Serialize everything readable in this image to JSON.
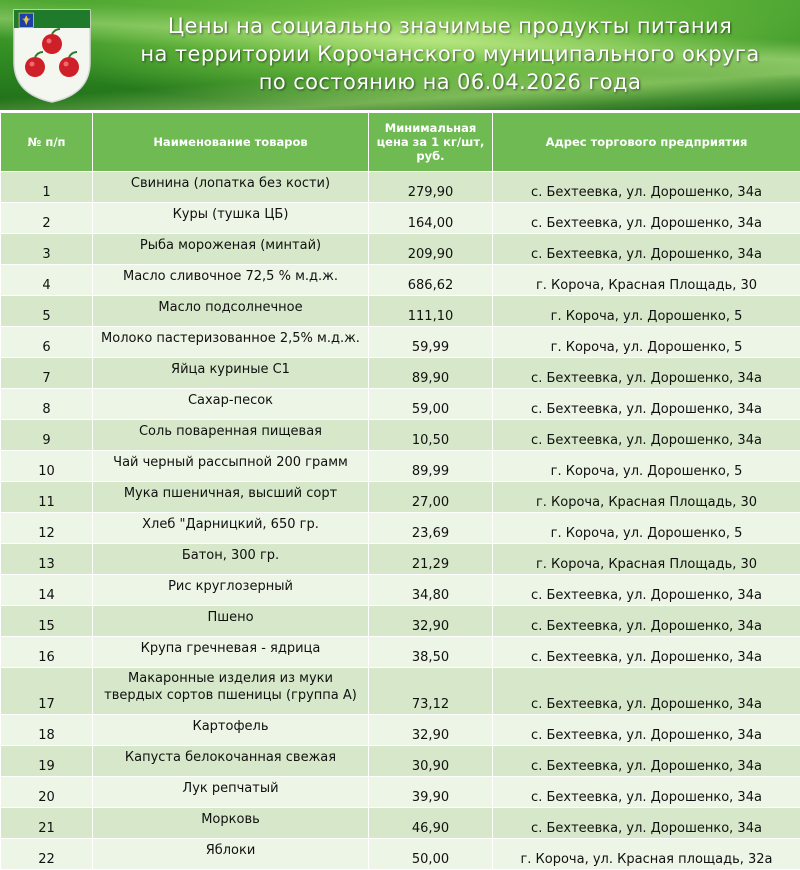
{
  "header": {
    "title_lines": [
      "Цены на социально значимые продукты питания",
      "на территории Корочанского муниципального округа",
      "по состоянию на 06.04.2026 года"
    ]
  },
  "colors": {
    "header_bg": "#6fba52",
    "row_odd": "#d6e8c9",
    "row_even": "#edf5e6",
    "banner_green": "#3a9528"
  },
  "table": {
    "columns": [
      "№ п/п",
      "Наименование товаров",
      "Минимальная цена за 1 кг/шт, руб.",
      "Адрес торгового  предприятия"
    ],
    "rows": [
      {
        "num": "1",
        "name": "Свинина (лопатка без кости)",
        "price": "279,90",
        "address": "с. Бехтеевка, ул. Дорошенко, 34а"
      },
      {
        "num": "2",
        "name": "Куры (тушка ЦБ)",
        "price": "164,00",
        "address": "с. Бехтеевка, ул. Дорошенко, 34а"
      },
      {
        "num": "3",
        "name": "Рыба мороженая  (минтай)",
        "price": "209,90",
        "address": "с. Бехтеевка, ул. Дорошенко, 34а"
      },
      {
        "num": "4",
        "name": "Масло сливочное 72,5 % м.д.ж.",
        "price": "686,62",
        "address": "г. Короча, Красная Площадь, 30"
      },
      {
        "num": "5",
        "name": "Масло подсолнечное",
        "price": "111,10",
        "address": "г. Короча, ул. Дорошенко, 5"
      },
      {
        "num": "6",
        "name": "Молоко пастеризованное  2,5% м.д.ж.",
        "price": "59,99",
        "address": "г. Короча, ул. Дорошенко, 5"
      },
      {
        "num": "7",
        "name": "Яйца куриные С1",
        "price": "89,90",
        "address": "с. Бехтеевка, ул. Дорошенко, 34а"
      },
      {
        "num": "8",
        "name": "Сахар-песок",
        "price": "59,00",
        "address": "с. Бехтеевка, ул. Дорошенко, 34а"
      },
      {
        "num": "9",
        "name": "Соль поваренная пищевая",
        "price": "10,50",
        "address": "с. Бехтеевка, ул. Дорошенко, 34а"
      },
      {
        "num": "10",
        "name": "Чай черный рассыпной 200 грамм",
        "price": "89,99",
        "address": "г. Короча, ул. Дорошенко, 5"
      },
      {
        "num": "11",
        "name": "Мука пшеничная,  высший сорт",
        "price": "27,00",
        "address": "г. Короча, Красная Площадь, 30"
      },
      {
        "num": "12",
        "name": "Хлеб \"Дарницкий, 650 гр.",
        "price": "23,69",
        "address": "г. Короча, ул. Дорошенко, 5"
      },
      {
        "num": "13",
        "name": "Батон, 300 гр.",
        "price": "21,29",
        "address": "г. Короча, Красная Площадь, 30"
      },
      {
        "num": "14",
        "name": "Рис круглозерный",
        "price": "34,80",
        "address": "с. Бехтеевка, ул. Дорошенко, 34а"
      },
      {
        "num": "15",
        "name": "Пшено",
        "price": "32,90",
        "address": "с. Бехтеевка, ул. Дорошенко, 34а"
      },
      {
        "num": "16",
        "name": "Крупа гречневая  - ядрица",
        "price": "38,50",
        "address": "с. Бехтеевка, ул. Дорошенко, 34а"
      },
      {
        "num": "17",
        "name": "Макаронные изделия из муки твердых сортов пшеницы  (группа А)",
        "price": "73,12",
        "address": "с. Бехтеевка, ул. Дорошенко, 34а",
        "tall": true
      },
      {
        "num": "18",
        "name": "Картофель",
        "price": "32,90",
        "address": "с. Бехтеевка, ул. Дорошенко, 34а"
      },
      {
        "num": "19",
        "name": "Капуста белокочанная свежая",
        "price": "30,90",
        "address": "с. Бехтеевка, ул. Дорошенко, 34а"
      },
      {
        "num": "20",
        "name": "Лук репчатый",
        "price": "39,90",
        "address": "с. Бехтеевка, ул. Дорошенко, 34а"
      },
      {
        "num": "21",
        "name": "Морковь",
        "price": "46,90",
        "address": "с. Бехтеевка, ул. Дорошенко, 34а"
      },
      {
        "num": "22",
        "name": "Яблоки",
        "price": "50,00",
        "address": "г. Короча, ул. Красная площадь, 32а"
      }
    ]
  }
}
